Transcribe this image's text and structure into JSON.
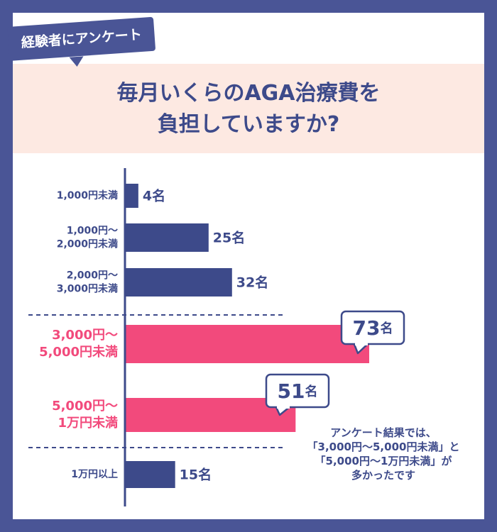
{
  "badge": {
    "label": "経験者にアンケート"
  },
  "title": {
    "line1": "毎月いくらのAGA治療費を",
    "line2": "負担していますか?"
  },
  "note": {
    "line1": "アンケート結果では、",
    "line2": "「3,000円〜5,000円未満」と",
    "line3": "「5,000円〜1万円未満」が",
    "line4": "多かったです"
  },
  "colors": {
    "frame": "#4a5596",
    "navy": "#3d4a8a",
    "pink": "#f24a7c",
    "title_band": "#fde9e2"
  },
  "chart_data": {
    "type": "bar",
    "orientation": "horizontal",
    "unit": "名",
    "categories": [
      [
        "1,000円未満"
      ],
      [
        "1,000円〜",
        "2,000円未満"
      ],
      [
        "2,000円〜",
        "3,000円未満"
      ],
      [
        "3,000円〜",
        "5,000円未満"
      ],
      [
        "5,000円〜",
        "1万円未満"
      ],
      [
        "1万円以上"
      ]
    ],
    "values": [
      4,
      25,
      32,
      73,
      51,
      15
    ],
    "highlighted": [
      false,
      false,
      false,
      true,
      true,
      false
    ],
    "value_labels": [
      "4名",
      "25名",
      "32名",
      "73名",
      "51名",
      "15名"
    ],
    "callout_labels": [
      {
        "number": "73",
        "unit": "名"
      },
      {
        "number": "51",
        "unit": "名"
      }
    ]
  }
}
